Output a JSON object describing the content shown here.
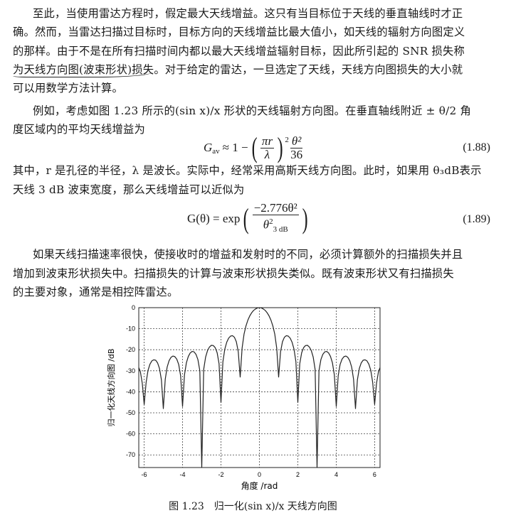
{
  "paragraph1": [
    "至此，当使用雷达方程时，假定最大天线增益。这只有当目标位于天线的垂直轴线时才正",
    "确。然而，当雷达扫描过目标时，目标方向的天线增益比最大值小，如天线的辐射方向图定义",
    "的那样。由于不是在所有扫描时间内都以最大天线增益辐射目标，因此所引起的 SNR 损失称",
    {
      "underlined": "为天线方向图(波束形状)损失",
      "rest": "。对于给定的雷达，一旦选定了天线，天线方向图损失的大小就"
    },
    "可以用数学方法计算。"
  ],
  "paragraph2": [
    "例如，考虑如图 1.23 所示的(sin x)/x 形状的天线辐射方向图。在垂直轴线附近 ± θ/2 角",
    "度区域内的平均天线增益为"
  ],
  "equation_188": {
    "lhs": "G",
    "lhs_sub": "av",
    "approx": "≈ 1 −",
    "num_in": "πr",
    "den_in": "λ",
    "power": "2",
    "num": "θ²",
    "den": "36",
    "number": "(1.88)"
  },
  "paragraph3": [
    "其中，r 是孔径的半径，λ 是波长。实际中，经常采用高斯天线方向图。此时，如果用 θ₃dB表示",
    "天线 3 dB 波束宽度，那么天线增益可以近似为"
  ],
  "equation_189": {
    "lhs": "G(θ) = exp",
    "num": "−2.776θ²",
    "den": "θ",
    "den_sup": "2",
    "den_sub": "3 dB",
    "number": "(1.89)"
  },
  "paragraph4": [
    "如果天线扫描速率很快，使接收时的增益和发射时的不同，必须计算额外的扫描损失并且",
    "增加到波束形状损失中。扫描损失的计算与波束形状损失类似。既有波束形状又有扫描损失",
    "的主要对象，通常是相控阵雷达。"
  ],
  "chart_data": {
    "type": "line",
    "xlabel": "角度 /rad",
    "ylabel": "归一化天线方向图 /dB",
    "xlim": [
      -6.28,
      6.28
    ],
    "ylim": [
      -76,
      0
    ],
    "xticks": [
      -6,
      -4,
      -2,
      0,
      2,
      4,
      6
    ],
    "yticks": [
      0,
      -10,
      -20,
      -30,
      -40,
      -50,
      -60,
      -70
    ],
    "grid": true,
    "line_color": "#222222",
    "x": [
      -6.28,
      -6.2,
      -6.1,
      -6.0,
      -5.9,
      -5.8,
      -5.7,
      -5.6,
      -5.5,
      -5.4,
      -5.3,
      -5.2,
      -5.1,
      -5.0,
      -4.9,
      -4.8,
      -4.7,
      -4.6,
      -4.5,
      -4.4,
      -4.3,
      -4.2,
      -4.1,
      -4.0,
      -3.9,
      -3.8,
      -3.7,
      -3.6,
      -3.5,
      -3.4,
      -3.3,
      -3.2,
      -3.1,
      -3.0,
      -2.9,
      -2.8,
      -2.7,
      -2.6,
      -2.5,
      -2.4,
      -2.3,
      -2.2,
      -2.1,
      -2.0,
      -1.9,
      -1.8,
      -1.7,
      -1.6,
      -1.5,
      -1.4,
      -1.3,
      -1.2,
      -1.1,
      -1.0,
      -0.9,
      -0.8,
      -0.7,
      -0.6,
      -0.5,
      -0.4,
      -0.3,
      -0.2,
      -0.1,
      0,
      0.1,
      0.2,
      0.3,
      0.4,
      0.5,
      0.6,
      0.7,
      0.8,
      0.9,
      1.0,
      1.1,
      1.2,
      1.3,
      1.4,
      1.5,
      1.6,
      1.7,
      1.8,
      1.9,
      2.0,
      2.1,
      2.2,
      2.3,
      2.4,
      2.5,
      2.6,
      2.7,
      2.8,
      2.9,
      3.0,
      3.1,
      3.2,
      3.3,
      3.4,
      3.5,
      3.6,
      3.7,
      3.8,
      3.9,
      4.0,
      4.1,
      4.2,
      4.3,
      4.4,
      4.5,
      4.6,
      4.7,
      4.8,
      4.9,
      5.0,
      5.1,
      5.2,
      5.3,
      5.4,
      5.5,
      5.6,
      5.7,
      5.8,
      5.9,
      6.0,
      6.1,
      6.2,
      6.28
    ],
    "y": [
      -28.5,
      -30.4,
      -35.9,
      -46,
      -35.6,
      -29.8,
      -26.9,
      -25.3,
      -24.8,
      -25.0,
      -26.3,
      -28.9,
      -34.3,
      -48,
      -34.0,
      -28.2,
      -25.2,
      -23.6,
      -23.0,
      -23.3,
      -24.5,
      -27.0,
      -32.4,
      -47,
      -32.0,
      -26.2,
      -23.2,
      -21.5,
      -20.8,
      -21.0,
      -22.2,
      -24.7,
      -30.0,
      -76,
      -29.4,
      -23.5,
      -20.4,
      -18.7,
      -17.9,
      -18.0,
      -19.0,
      -21.4,
      -26.6,
      -45,
      -25.7,
      -19.7,
      -16.4,
      -14.5,
      -13.5,
      -13.3,
      -14.1,
      -16.2,
      -21.0,
      -33,
      -19.2,
      -12.6,
      -8.7,
      -5.9,
      -3.9,
      -2.4,
      -1.3,
      -0.6,
      -0.1,
      0,
      -0.1,
      -0.6,
      -1.3,
      -2.4,
      -3.9,
      -5.9,
      -8.7,
      -12.6,
      -19.2,
      -33,
      -21.0,
      -16.2,
      -14.1,
      -13.3,
      -13.5,
      -14.5,
      -16.4,
      -19.7,
      -25.7,
      -45,
      -26.6,
      -21.4,
      -19.0,
      -18.0,
      -17.9,
      -18.7,
      -20.4,
      -23.5,
      -29.4,
      -76,
      -30.0,
      -24.7,
      -22.2,
      -21.0,
      -20.8,
      -21.5,
      -23.2,
      -26.2,
      -32.0,
      -47,
      -32.4,
      -27.0,
      -24.5,
      -23.3,
      -23.0,
      -23.6,
      -25.2,
      -28.2,
      -34.0,
      -48,
      -34.3,
      -28.9,
      -26.3,
      -25.0,
      -24.8,
      -25.3,
      -26.9,
      -29.8,
      -35.6,
      -46,
      -35.9,
      -30.4,
      -28.5
    ]
  },
  "caption": "图 1.23　归一化(sin x)/x 天线方向图"
}
